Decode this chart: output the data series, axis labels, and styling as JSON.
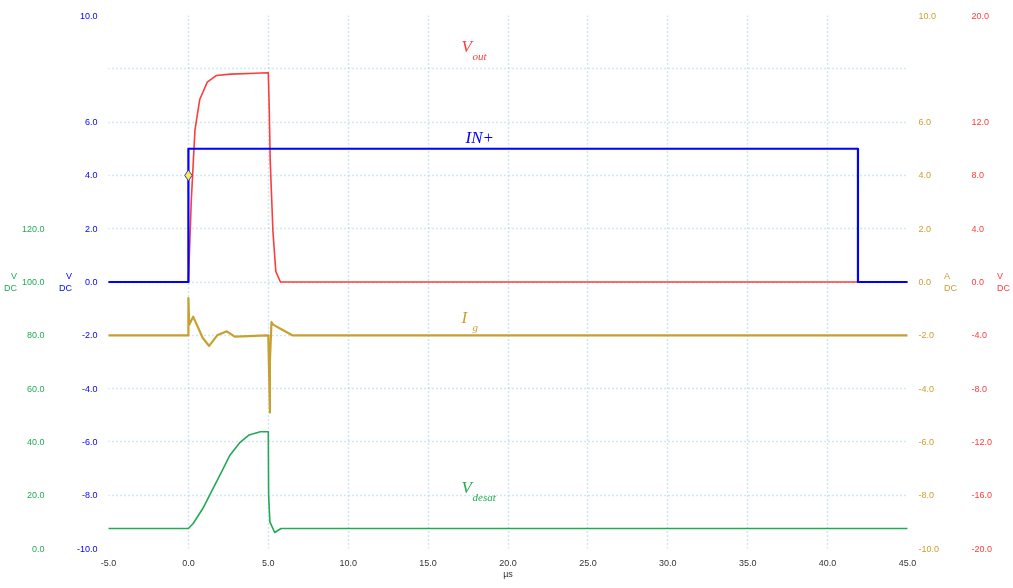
{
  "chart_data": {
    "type": "line",
    "xlabel": "µs",
    "annotations": [
      "V DC",
      "V DC",
      "A DC",
      "V DC"
    ],
    "xlim": [
      -5,
      45
    ],
    "xticks": [
      {
        "value": -5,
        "label": "-5.0"
      },
      {
        "value": 0,
        "label": "0.0"
      },
      {
        "value": 5,
        "label": "5.0"
      },
      {
        "value": 10,
        "label": "10.0"
      },
      {
        "value": 15,
        "label": "15.0"
      },
      {
        "value": 20,
        "label": "20.0"
      },
      {
        "value": 25,
        "label": "25.0"
      },
      {
        "value": 30,
        "label": "30.0"
      },
      {
        "value": 35,
        "label": "35.0"
      },
      {
        "value": 40,
        "label": "40.0"
      },
      {
        "value": 45,
        "label": "45.0"
      }
    ],
    "ylim": [
      -10,
      10
    ],
    "yticks": [
      {
        "value": -10,
        "label": "-10.0"
      },
      {
        "value": -8,
        "label": "-8.0"
      },
      {
        "value": -6,
        "label": "-6.0"
      },
      {
        "value": -4,
        "label": "-4.0"
      },
      {
        "value": -2,
        "label": "-2.0"
      },
      {
        "value": 0,
        "label": "0.0"
      },
      {
        "value": 2,
        "label": "2.0"
      },
      {
        "value": 4,
        "label": "4.0"
      },
      {
        "value": 6,
        "label": "6.0"
      },
      {
        "value": 8,
        "label": null
      },
      {
        "value": 10,
        "label": "10.0"
      }
    ],
    "y2lim": [
      -20,
      20
    ],
    "y2ticks": [
      {
        "value": -20,
        "label": "-20.0"
      },
      {
        "value": -16,
        "label": "-16.0"
      },
      {
        "value": -12,
        "label": "-12.0"
      },
      {
        "value": -8,
        "label": "-8.0"
      },
      {
        "value": -4,
        "label": "-4.0"
      },
      {
        "value": 0,
        "label": "0.0"
      },
      {
        "value": 4,
        "label": "4.0"
      },
      {
        "value": 8,
        "label": "8.0"
      },
      {
        "value": 12,
        "label": "12.0"
      },
      {
        "value": 16,
        "label": null
      },
      {
        "value": 20,
        "label": "20.0"
      }
    ],
    "y3lim": [
      0,
      200
    ],
    "y3ticks": [
      {
        "value": 0,
        "label": "0.0"
      },
      {
        "value": 20,
        "label": "20.0"
      },
      {
        "value": 40,
        "label": "40.0"
      },
      {
        "value": 60,
        "label": "60.0"
      },
      {
        "value": 80,
        "label": "80.0"
      },
      {
        "value": 100,
        "label": "100.0"
      },
      {
        "value": 120,
        "label": "120.0"
      }
    ],
    "grid": true,
    "series": [
      {
        "name": "V$_{out}$",
        "color": "#ff3b3b",
        "axis": "y2",
        "x": [
          -5,
          0,
          0.18,
          0.41,
          0.71,
          1.18,
          1.76,
          2.65,
          5.0,
          5.06,
          5.12,
          5.29,
          5.47,
          5.76,
          45
        ],
        "values": [
          0,
          0,
          6.1,
          11.4,
          13.7,
          15.0,
          15.5,
          15.6,
          15.7,
          12.9,
          9.1,
          3.8,
          0.8,
          0,
          0
        ]
      },
      {
        "name": "IN+",
        "color": "#0000ff",
        "x": [
          -5,
          0,
          0,
          41.9,
          41.9,
          45
        ],
        "values": [
          0,
          0,
          5.0,
          5.0,
          0,
          0
        ]
      },
      {
        "name": "I$_{g}$",
        "color": "#c8a032",
        "x": [
          -5,
          0,
          0,
          0.05,
          0.3,
          0.9,
          1.3,
          1.8,
          2.4,
          2.9,
          5.0,
          5.1,
          5.1,
          5.2,
          5.3,
          5.9,
          6.5,
          45
        ],
        "values": [
          -2.0,
          -2.0,
          -0.6,
          -1.6,
          -1.3,
          -2.1,
          -2.4,
          -2.0,
          -1.85,
          -2.05,
          -2.0,
          -4.9,
          -3.0,
          -1.5,
          -1.6,
          -1.8,
          -2.0,
          -2.0
        ]
      },
      {
        "name": "V$_{desat}$",
        "color": "#22aa55",
        "axis": "y3",
        "x": [
          -5,
          0,
          0.3,
          0.9,
          1.5,
          2.1,
          2.6,
          3.2,
          3.8,
          4.5,
          5.0,
          5.02,
          5.1,
          5.4,
          5.8,
          45
        ],
        "values": [
          7.5,
          7.5,
          9.4,
          15,
          22,
          29,
          35,
          39.6,
          42.6,
          43.8,
          43.8,
          20,
          10,
          6,
          7.5,
          7.5
        ]
      },
      {
        "type": "scatter",
        "color": "#ffee33",
        "marker": "diamond",
        "x": [
          0
        ],
        "values": [
          4.0
        ]
      }
    ]
  }
}
